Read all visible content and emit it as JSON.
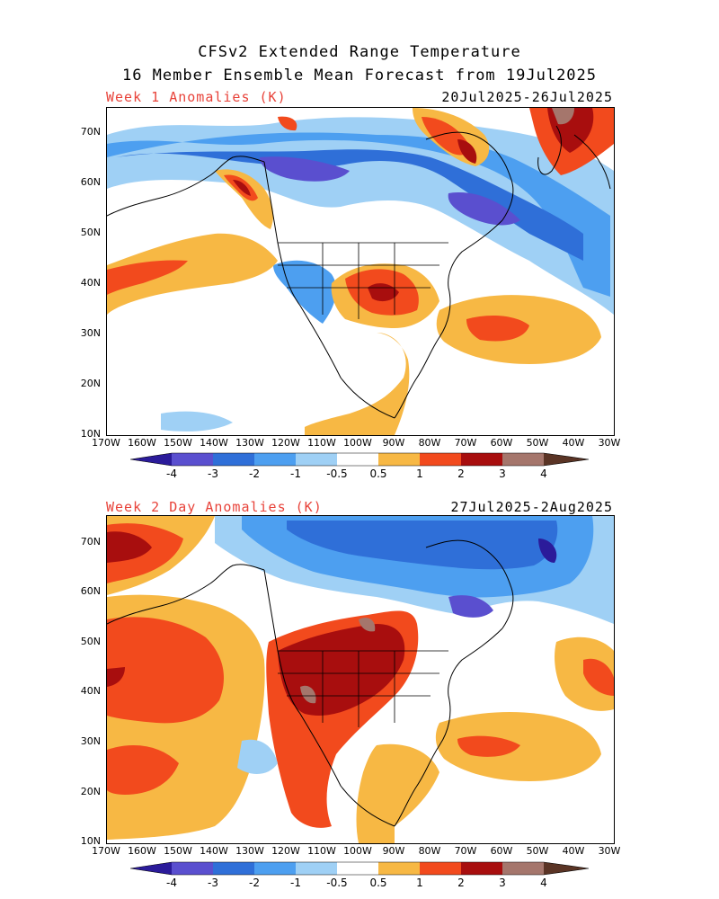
{
  "header": {
    "title_line1": "CFSv2 Extended Range Temperature",
    "title_line2": "16 Member Ensemble Mean Forecast from 19Jul2025"
  },
  "panels": [
    {
      "label": "Week 1 Anomalies (K)",
      "dates": "20Jul2025-26Jul2025"
    },
    {
      "label": "Week 2 Day Anomalies (K)",
      "dates": "27Jul2025-2Aug2025"
    }
  ],
  "axes": {
    "lat_labels": [
      "70N",
      "60N",
      "50N",
      "40N",
      "30N",
      "20N",
      "10N"
    ],
    "lon_labels": [
      "170W",
      "160W",
      "150W",
      "140W",
      "130W",
      "120W",
      "110W",
      "100W",
      "90W",
      "80W",
      "70W",
      "60W",
      "50W",
      "40W",
      "30W"
    ]
  },
  "colorbar": {
    "labels": [
      "-4",
      "-3",
      "-2",
      "-1",
      "-0.5",
      "0.5",
      "1",
      "2",
      "3",
      "4"
    ],
    "colors": [
      "#2b1b9a",
      "#5a4fcf",
      "#2f6fd8",
      "#4d9ff0",
      "#9fd0f5",
      "#ffffff",
      "#f7b844",
      "#f24a1d",
      "#a80e0e",
      "#a5766c",
      "#5a3425"
    ]
  },
  "colors": {
    "title_accent": "#e8433a",
    "coast": "#000000"
  }
}
